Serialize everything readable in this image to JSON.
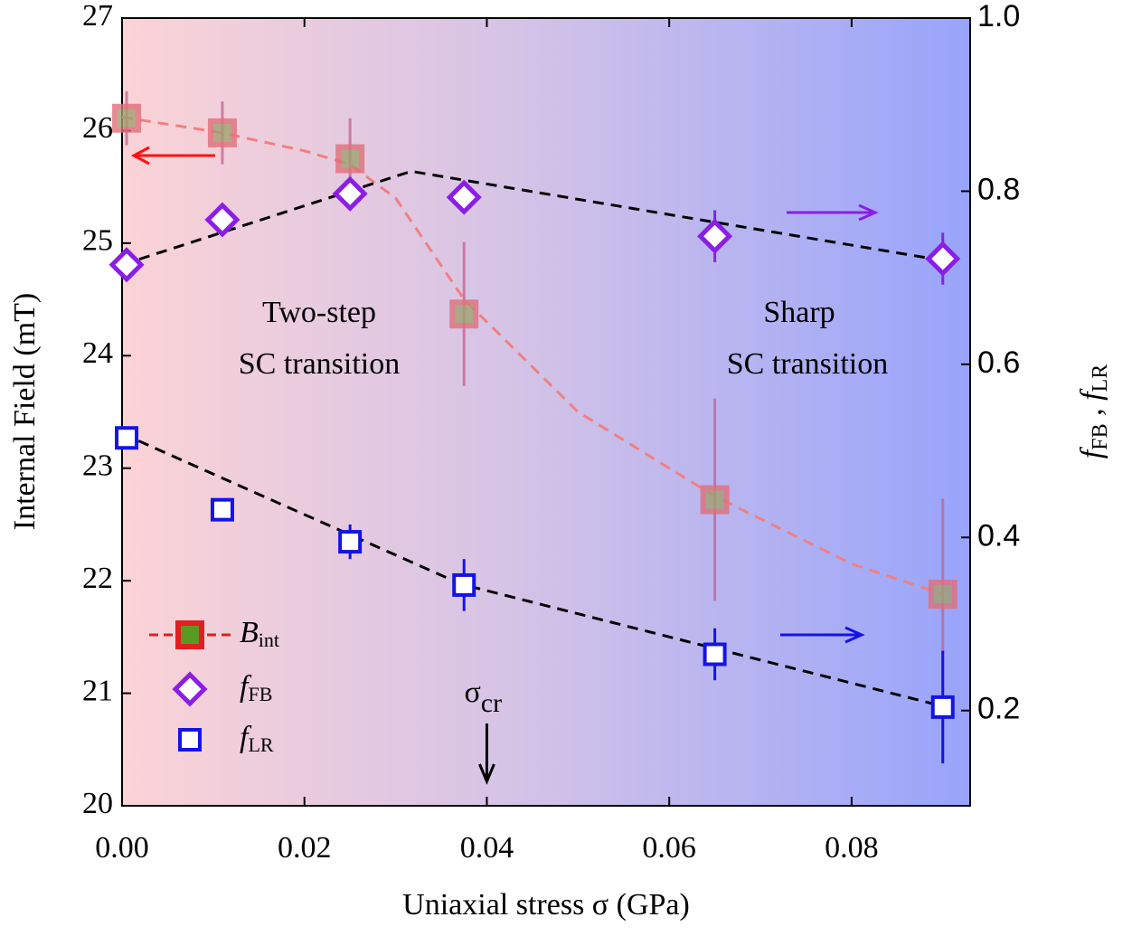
{
  "chart_data": {
    "type": "scatter",
    "xlabel": "Uniaxial stress σ (GPa)",
    "ylabel": "Internal Field (mT)",
    "y2label_parts": [
      "f",
      "FB",
      " , ",
      "f",
      "LR"
    ],
    "xlim": [
      0,
      0.093
    ],
    "ylim": [
      20,
      27
    ],
    "y2lim": [
      0.09,
      1.0
    ],
    "xticks": [
      {
        "value": 0,
        "label": "0.00"
      },
      0.02,
      0.04,
      0.06,
      0.08
    ],
    "yticks": [
      20,
      21,
      22,
      23,
      24,
      25,
      26,
      27
    ],
    "y2ticks": [
      0.2,
      0.4,
      0.6,
      0.8,
      {
        "value": 1,
        "label": "1.0"
      }
    ],
    "series": [
      {
        "name": "B",
        "name_sub": "int",
        "axis": "y",
        "color": "#e0707a",
        "fill": "#a0a070",
        "x": [
          0.0005,
          0.011,
          0.025,
          0.0375,
          0.065,
          0.09
        ],
        "values": [
          26.11,
          25.98,
          25.75,
          24.37,
          22.72,
          21.88
        ],
        "errors": [
          0.24,
          0.28,
          0.36,
          0.64,
          0.9,
          0.85
        ]
      },
      {
        "name": "f",
        "name_sub": "FB",
        "axis": "y2",
        "color": "#8a1ee6",
        "x": [
          0.0005,
          0.011,
          0.025,
          0.0375,
          0.065,
          0.09
        ],
        "values": [
          0.715,
          0.767,
          0.797,
          0.793,
          0.748,
          0.722
        ],
        "errors": [
          null,
          null,
          null,
          null,
          0.03,
          0.03
        ]
      },
      {
        "name": "f",
        "name_sub": "LR",
        "axis": "y2",
        "color": "#1414e6",
        "x": [
          0.0005,
          0.011,
          0.025,
          0.0375,
          0.065,
          0.09
        ],
        "values": [
          0.515,
          0.432,
          0.395,
          0.345,
          0.265,
          0.204
        ],
        "errors": [
          null,
          null,
          0.02,
          0.03,
          0.03,
          0.065
        ]
      }
    ],
    "fits": [
      {
        "axis": "y",
        "color": "#f08080",
        "x": [
          0,
          0.011,
          0.02,
          0.025,
          0.03,
          0.0375,
          0.05,
          0.065,
          0.08,
          0.09
        ],
        "values": [
          26.12,
          25.98,
          25.82,
          25.7,
          25.4,
          24.5,
          23.5,
          22.75,
          22.15,
          21.88
        ]
      },
      {
        "axis": "y2",
        "color": "#000000",
        "x": [
          0,
          0.0317,
          0.09
        ],
        "values": [
          0.715,
          0.823,
          0.72
        ]
      },
      {
        "axis": "y2",
        "color": "#000000",
        "x": [
          0,
          0.0372,
          0.09
        ],
        "values": [
          0.52,
          0.346,
          0.205
        ]
      }
    ],
    "annotations": [
      "Two-step",
      "SC transition",
      "Sharp",
      "SC transition"
    ],
    "critical": {
      "symbol": "σ",
      "sub": "cr",
      "x": 0.04
    }
  }
}
